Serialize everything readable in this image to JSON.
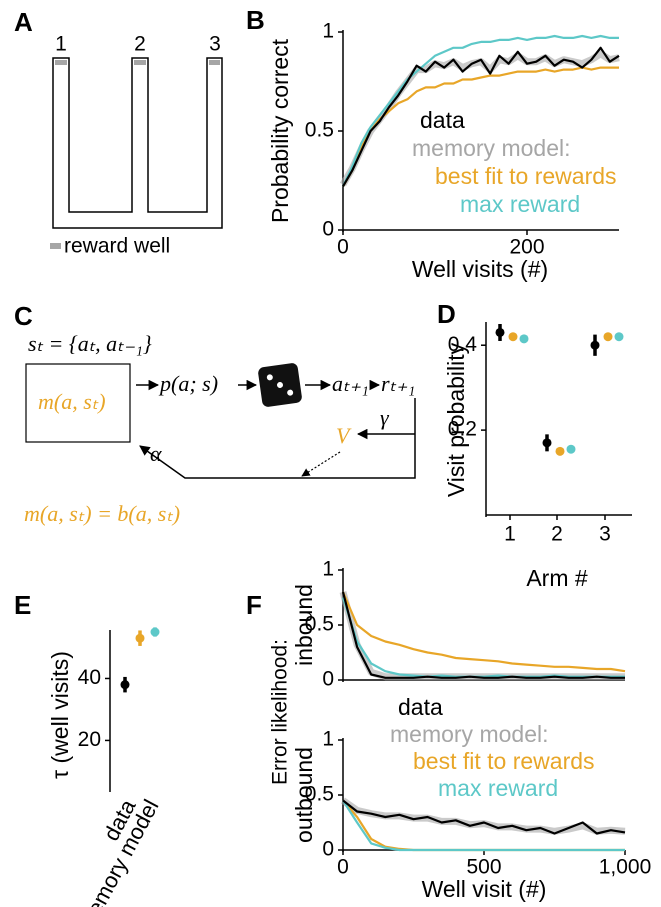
{
  "panel_labels": [
    "A",
    "B",
    "C",
    "D",
    "E",
    "F"
  ],
  "maze": {
    "arm_labels": [
      "1",
      "2",
      "3"
    ],
    "legend": "reward well"
  },
  "model_diagram": {
    "state": "sₜ = {aₜ, aₜ₋₁}",
    "memory": "m(a, sₜ)",
    "policy": "p(a; s)",
    "action": "aₜ₊₁",
    "reward": "rₜ₊₁",
    "value": "V",
    "gamma": "γ",
    "alpha": "α",
    "equation": "m(a, sₜ) = b(a, sₜ)"
  },
  "f_shared_ylabel": "Error likelihood:",
  "chart_data": [
    {
      "type": "line",
      "xlabel": "Well visits (#)",
      "ylabel": "Probability correct",
      "xlim": [
        0,
        300
      ],
      "xticks": [
        0,
        200
      ],
      "ylim": [
        0,
        1
      ],
      "yticks": [
        0,
        0.5,
        1
      ],
      "x": [
        0,
        10,
        20,
        30,
        40,
        50,
        60,
        70,
        80,
        90,
        100,
        110,
        120,
        130,
        140,
        150,
        160,
        170,
        180,
        190,
        200,
        210,
        220,
        230,
        240,
        250,
        260,
        270,
        280,
        290,
        300
      ],
      "series": [
        {
          "name": "memory model:",
          "color": "#a6a6a6",
          "style": "shaded",
          "values": [
            0.23,
            0.31,
            0.41,
            0.5,
            0.56,
            0.62,
            0.69,
            0.75,
            0.81,
            0.81,
            0.84,
            0.83,
            0.85,
            0.82,
            0.84,
            0.85,
            0.81,
            0.86,
            0.85,
            0.88,
            0.85,
            0.85,
            0.87,
            0.84,
            0.86,
            0.85,
            0.84,
            0.86,
            0.89,
            0.86,
            0.87
          ]
        },
        {
          "name": "best fit to rewards",
          "color": "#e8a628",
          "values": [
            0.22,
            0.3,
            0.42,
            0.5,
            0.56,
            0.6,
            0.64,
            0.66,
            0.7,
            0.72,
            0.72,
            0.74,
            0.74,
            0.76,
            0.76,
            0.77,
            0.78,
            0.78,
            0.79,
            0.8,
            0.8,
            0.8,
            0.81,
            0.8,
            0.81,
            0.81,
            0.82,
            0.81,
            0.82,
            0.82,
            0.82
          ]
        },
        {
          "name": "max reward",
          "color": "#5dc8c8",
          "values": [
            0.22,
            0.32,
            0.44,
            0.52,
            0.58,
            0.64,
            0.7,
            0.76,
            0.8,
            0.84,
            0.88,
            0.9,
            0.92,
            0.92,
            0.94,
            0.95,
            0.95,
            0.96,
            0.96,
            0.97,
            0.96,
            0.97,
            0.97,
            0.98,
            0.97,
            0.97,
            0.98,
            0.97,
            0.98,
            0.97,
            0.97
          ]
        },
        {
          "name": "data",
          "color": "#000000",
          "values": [
            0.22,
            0.3,
            0.4,
            0.5,
            0.55,
            0.62,
            0.68,
            0.75,
            0.83,
            0.8,
            0.85,
            0.82,
            0.86,
            0.8,
            0.84,
            0.86,
            0.79,
            0.88,
            0.84,
            0.9,
            0.84,
            0.85,
            0.88,
            0.83,
            0.86,
            0.85,
            0.82,
            0.86,
            0.92,
            0.85,
            0.88
          ]
        }
      ]
    },
    {
      "type": "dot",
      "xlabel": "Arm #",
      "ylabel": "Visit probability",
      "categories": [
        "1",
        "2",
        "3"
      ],
      "ylim": [
        0,
        0.45
      ],
      "yticks": [
        0.2,
        0.4
      ],
      "series": [
        {
          "color": "#000000",
          "values": [
            0.43,
            0.17,
            0.4
          ],
          "errors": [
            0.02,
            0.02,
            0.025
          ]
        },
        {
          "color": "#e8a628",
          "values": [
            0.42,
            0.15,
            0.42
          ],
          "errors": [
            0.005,
            0.005,
            0.005
          ]
        },
        {
          "color": "#5dc8c8",
          "values": [
            0.415,
            0.155,
            0.42
          ],
          "errors": [
            0.004,
            0.004,
            0.004
          ]
        }
      ]
    },
    {
      "type": "dot",
      "ylabel": "τ (well visits)",
      "categories": [
        "data",
        "memory model"
      ],
      "ylim": [
        4,
        55
      ],
      "yticks": [
        20,
        40
      ],
      "series": [
        {
          "color": "#000000",
          "values": [
            38,
            null
          ],
          "errors": [
            2.5,
            null
          ]
        },
        {
          "color": "#e8a628",
          "values": [
            null,
            53
          ],
          "errors": [
            null,
            2.5
          ]
        },
        {
          "color": "#5dc8c8",
          "values": [
            null,
            55
          ],
          "errors": [
            null,
            1.5
          ]
        }
      ]
    },
    {
      "type": "line",
      "ylabel": "inbound",
      "xlim": [
        0,
        1000
      ],
      "ylim": [
        0,
        1
      ],
      "yticks": [
        0,
        0.5,
        1
      ],
      "x": [
        0,
        50,
        100,
        150,
        200,
        250,
        300,
        350,
        400,
        450,
        500,
        550,
        600,
        650,
        700,
        750,
        800,
        850,
        900,
        950,
        1000
      ],
      "series": [
        {
          "color": "#a6a6a6",
          "style": "shaded",
          "values": [
            0.8,
            0.32,
            0.07,
            0.03,
            0.03,
            0.03,
            0.03,
            0.03,
            0.03,
            0.03,
            0.03,
            0.03,
            0.03,
            0.03,
            0.03,
            0.03,
            0.03,
            0.03,
            0.03,
            0.03,
            0.03
          ]
        },
        {
          "color": "#e8a628",
          "values": [
            0.8,
            0.5,
            0.4,
            0.35,
            0.32,
            0.28,
            0.25,
            0.23,
            0.2,
            0.19,
            0.18,
            0.17,
            0.15,
            0.14,
            0.13,
            0.12,
            0.12,
            0.11,
            0.1,
            0.1,
            0.08
          ]
        },
        {
          "color": "#5dc8c8",
          "values": [
            0.75,
            0.35,
            0.15,
            0.08,
            0.05,
            0.04,
            0.03,
            0.04,
            0.03,
            0.03,
            0.03,
            0.04,
            0.03,
            0.03,
            0.03,
            0.04,
            0.03,
            0.03,
            0.03,
            0.03,
            0.03
          ]
        },
        {
          "color": "#000000",
          "values": [
            0.8,
            0.3,
            0.05,
            0.02,
            0.02,
            0.02,
            0.03,
            0.02,
            0.02,
            0.03,
            0.02,
            0.02,
            0.03,
            0.02,
            0.02,
            0.03,
            0.02,
            0.02,
            0.03,
            0.02,
            0.02
          ]
        }
      ]
    },
    {
      "type": "line",
      "xlabel": "Well visit (#)",
      "ylabel": "outbound",
      "xlim": [
        0,
        1000
      ],
      "xticks": [
        0,
        500,
        {
          "value": 1000,
          "label": "1,000"
        }
      ],
      "ylim": [
        0,
        1
      ],
      "yticks": [
        0,
        0.5,
        1
      ],
      "x": [
        0,
        50,
        100,
        150,
        200,
        250,
        300,
        350,
        400,
        450,
        500,
        550,
        600,
        650,
        700,
        750,
        800,
        850,
        900,
        950,
        1000
      ],
      "series": [
        {
          "name": "memory model:",
          "color": "#a6a6a6",
          "style": "shaded",
          "values": [
            0.45,
            0.36,
            0.33,
            0.31,
            0.31,
            0.29,
            0.29,
            0.26,
            0.26,
            0.23,
            0.24,
            0.21,
            0.21,
            0.19,
            0.19,
            0.17,
            0.19,
            0.22,
            0.17,
            0.18,
            0.17
          ]
        },
        {
          "name": "best fit to rewards",
          "color": "#e8a628",
          "values": [
            0.45,
            0.3,
            0.1,
            0.03,
            0.01,
            0,
            0,
            0,
            0,
            0,
            0,
            0,
            0,
            0,
            0,
            0,
            0,
            0,
            0,
            0,
            0
          ]
        },
        {
          "name": "max reward",
          "color": "#5dc8c8",
          "values": [
            0.45,
            0.25,
            0.06,
            0.02,
            0,
            0,
            0,
            0,
            0,
            0,
            0,
            0,
            0,
            0,
            0,
            0,
            0,
            0,
            0,
            0,
            0
          ]
        },
        {
          "name": "data",
          "color": "#000000",
          "values": [
            0.45,
            0.35,
            0.33,
            0.3,
            0.32,
            0.28,
            0.3,
            0.25,
            0.27,
            0.22,
            0.25,
            0.2,
            0.22,
            0.18,
            0.2,
            0.15,
            0.2,
            0.25,
            0.15,
            0.18,
            0.16
          ]
        }
      ]
    }
  ]
}
